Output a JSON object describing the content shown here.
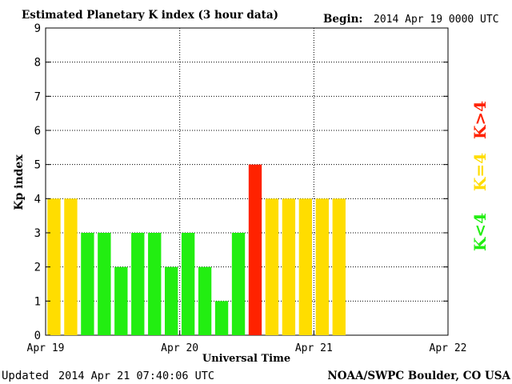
{
  "header": {
    "title": "Estimated Planetary K index (3 hour data)",
    "begin_label": "Begin:",
    "begin_value": "2014 Apr 19 0000 UTC"
  },
  "footer": {
    "updated_label": "Updated",
    "updated_value": "2014 Apr 21 07:40:06 UTC",
    "credit": "NOAA/SWPC Boulder, CO USA"
  },
  "legend": {
    "high": "K>4",
    "equal": "K=4",
    "low": "K<4"
  },
  "colors": {
    "low": "#22ee11",
    "equal": "#ffdd00",
    "high": "#ff2200",
    "grid": "#000000",
    "axis": "#000000"
  },
  "chart_data": {
    "type": "bar",
    "title": "Estimated Planetary K index (3 hour data)",
    "xlabel": "Universal Time",
    "ylabel": "Kp index",
    "ylim": [
      0,
      9
    ],
    "yticks": [
      0,
      1,
      2,
      3,
      4,
      5,
      6,
      7,
      8,
      9
    ],
    "xlim_days": [
      0,
      3
    ],
    "xticks": [
      {
        "day": 0,
        "label": "Apr 19"
      },
      {
        "day": 1,
        "label": "Apr 20"
      },
      {
        "day": 2,
        "label": "Apr 21"
      },
      {
        "day": 3,
        "label": "Apr 22"
      }
    ],
    "grid": true,
    "interval_hours": 3,
    "categories": [
      "Apr 19 00-03",
      "Apr 19 03-06",
      "Apr 19 06-09",
      "Apr 19 09-12",
      "Apr 19 12-15",
      "Apr 19 15-18",
      "Apr 19 18-21",
      "Apr 19 21-24",
      "Apr 20 00-03",
      "Apr 20 03-06",
      "Apr 20 06-09",
      "Apr 20 09-12",
      "Apr 20 12-15",
      "Apr 20 15-18",
      "Apr 20 18-21",
      "Apr 20 21-24",
      "Apr 21 00-03",
      "Apr 21 03-06"
    ],
    "values": [
      4,
      4,
      3,
      3,
      2,
      3,
      3,
      2,
      3,
      2,
      1,
      3,
      5,
      4,
      4,
      4,
      4,
      4
    ]
  }
}
